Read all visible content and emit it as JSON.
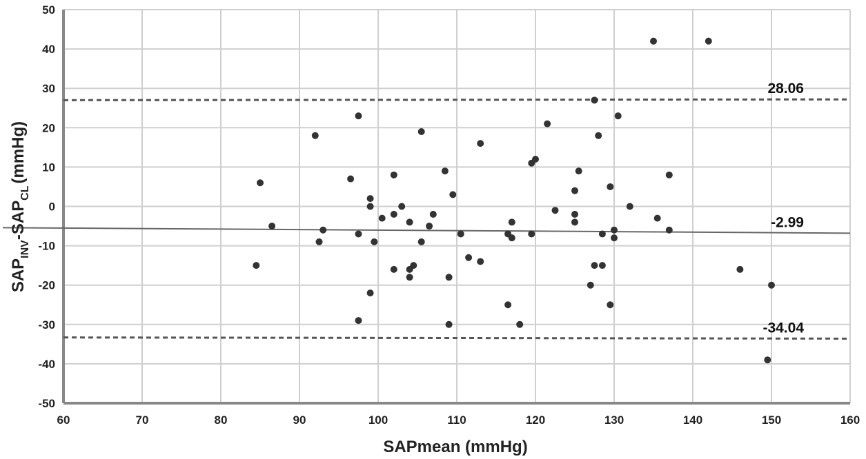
{
  "chart_data": {
    "type": "scatter",
    "title": "",
    "xlabel": "SAPmean (mmHg)",
    "ylabel_main": "SAP",
    "ylabel_sub1": "INV",
    "ylabel_mid": "-SAP",
    "ylabel_sub2": "CL",
    "ylabel_units": "(mmHg)",
    "xlim": [
      60,
      160
    ],
    "ylim": [
      -50,
      50
    ],
    "x_ticks": [
      60,
      70,
      80,
      90,
      100,
      110,
      120,
      130,
      140,
      150,
      160
    ],
    "y_ticks": [
      -50,
      -40,
      -30,
      -20,
      -10,
      0,
      10,
      20,
      30,
      40,
      50
    ],
    "grid": true,
    "reference_lines": [
      {
        "label": "28.06",
        "y": 27.0,
        "y_end": 27.2,
        "style": "dashed"
      },
      {
        "label": "-2.99",
        "y": -5.4,
        "y_end": -6.8,
        "style": "solid"
      },
      {
        "label": "-34.04",
        "y": -33.3,
        "y_end": -33.6,
        "style": "dashed"
      }
    ],
    "points": [
      [
        84.5,
        -15
      ],
      [
        85,
        6
      ],
      [
        86.5,
        -5
      ],
      [
        92,
        18
      ],
      [
        92.5,
        -9
      ],
      [
        93,
        -6
      ],
      [
        96.5,
        7
      ],
      [
        97.5,
        23
      ],
      [
        97.5,
        -7
      ],
      [
        97.5,
        -29
      ],
      [
        99,
        2
      ],
      [
        99,
        0
      ],
      [
        99,
        -22
      ],
      [
        99.5,
        -9
      ],
      [
        100.5,
        -3
      ],
      [
        102,
        8
      ],
      [
        102,
        -2
      ],
      [
        102,
        -16
      ],
      [
        103,
        0
      ],
      [
        104,
        -4
      ],
      [
        104,
        -16
      ],
      [
        104,
        -18
      ],
      [
        104.5,
        -15
      ],
      [
        105.5,
        19
      ],
      [
        105.5,
        -9
      ],
      [
        106.5,
        -5
      ],
      [
        107,
        -2
      ],
      [
        108.5,
        9
      ],
      [
        109,
        -18
      ],
      [
        109,
        -30
      ],
      [
        109.5,
        3
      ],
      [
        110.5,
        -7
      ],
      [
        111.5,
        -13
      ],
      [
        113,
        16
      ],
      [
        113,
        -14
      ],
      [
        116.5,
        -7
      ],
      [
        116.5,
        -25
      ],
      [
        117,
        -4
      ],
      [
        117,
        -8
      ],
      [
        118,
        -30
      ],
      [
        119.5,
        11
      ],
      [
        119.5,
        -7
      ],
      [
        120,
        12
      ],
      [
        121.5,
        21
      ],
      [
        122.5,
        -1
      ],
      [
        125,
        4
      ],
      [
        125,
        -2
      ],
      [
        125,
        -4
      ],
      [
        125.5,
        9
      ],
      [
        127,
        -20
      ],
      [
        127.5,
        27
      ],
      [
        127.5,
        -15
      ],
      [
        128,
        18
      ],
      [
        128.5,
        -7
      ],
      [
        128.5,
        -15
      ],
      [
        129.5,
        5
      ],
      [
        129.5,
        -25
      ],
      [
        130,
        -6
      ],
      [
        130,
        -8
      ],
      [
        130.5,
        23
      ],
      [
        132,
        0
      ],
      [
        135,
        42
      ],
      [
        135.5,
        -3
      ],
      [
        137,
        8
      ],
      [
        137,
        -6
      ],
      [
        142,
        42
      ],
      [
        146,
        -16
      ],
      [
        149.5,
        -39
      ],
      [
        150,
        -20
      ]
    ]
  }
}
